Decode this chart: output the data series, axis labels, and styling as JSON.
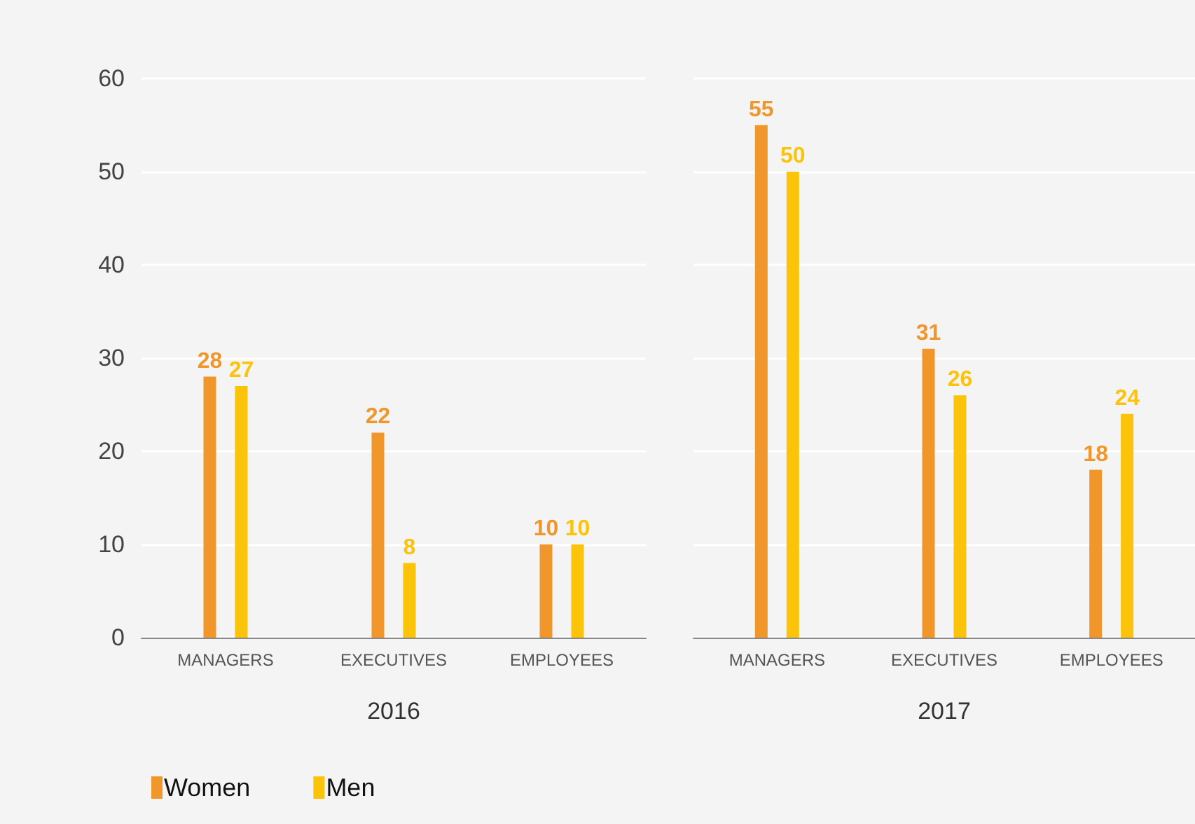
{
  "chart_data": [
    {
      "type": "bar",
      "xlabel": "2016",
      "categories": [
        "MANAGERS",
        "EXECUTIVES",
        "EMPLOYEES"
      ],
      "series": [
        {
          "name": "Women",
          "color": "#f0962a",
          "values": [
            28,
            22,
            10
          ]
        },
        {
          "name": "Men",
          "color": "#fcc30b",
          "values": [
            27,
            8,
            10
          ]
        }
      ],
      "ylim": [
        0,
        60
      ],
      "yticks": [
        0,
        10,
        20,
        30,
        40,
        50,
        60
      ],
      "grid": "y",
      "data_labels": true,
      "legend": "bottom left"
    },
    {
      "type": "bar",
      "xlabel": "2017",
      "categories": [
        "MANAGERS",
        "EXECUTIVES",
        "EMPLOYEES"
      ],
      "series": [
        {
          "color": "#f0962a",
          "values": [
            55,
            31,
            18
          ]
        },
        {
          "color": "#fcc30b",
          "values": [
            50,
            26,
            24
          ]
        }
      ],
      "ylim": [
        0,
        60
      ],
      "yticks": [
        0,
        10,
        20,
        30,
        40,
        50,
        60
      ],
      "grid": "y",
      "data_labels": true,
      "tick_labels": "x"
    }
  ]
}
